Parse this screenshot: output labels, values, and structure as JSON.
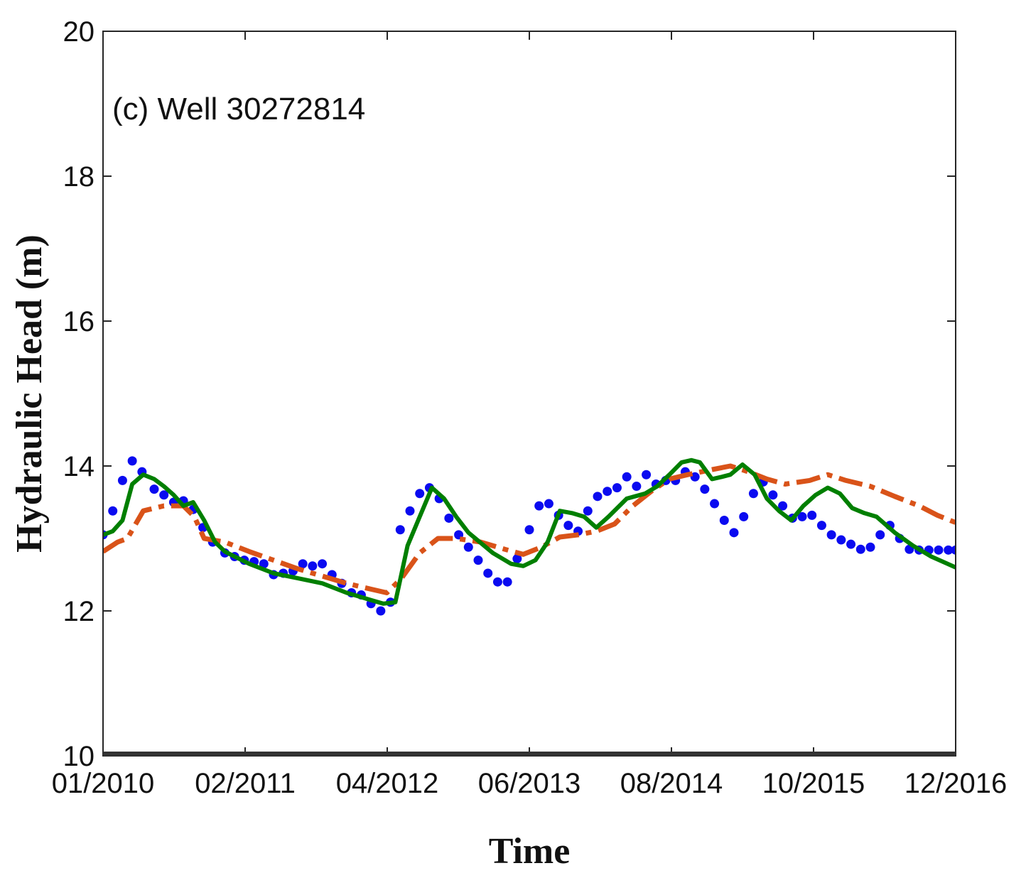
{
  "chart_data": {
    "type": "line",
    "title": "",
    "annotation": "(c) Well 30272814",
    "xlabel": "Time",
    "ylabel": "Hydraulic Head (m)",
    "xlim": [
      0,
      7.0
    ],
    "ylim": [
      10,
      20
    ],
    "x_ticks": [
      0,
      1.1667,
      2.3333,
      3.5,
      4.6667,
      5.8333,
      7.0
    ],
    "x_tick_labels": [
      "01/2010",
      "02/2011",
      "04/2012",
      "06/2013",
      "08/2014",
      "10/2015",
      "12/2016"
    ],
    "y_ticks": [
      10,
      12,
      14,
      16,
      18,
      20
    ],
    "y_tick_labels": [
      "10",
      "12",
      "14",
      "16",
      "18",
      "20"
    ],
    "grid": false,
    "legend": "none",
    "series": [
      {
        "style": "markers",
        "color": "#0a0af0",
        "x": [
          0.0,
          0.08,
          0.16,
          0.24,
          0.32,
          0.42,
          0.5,
          0.58,
          0.66,
          0.74,
          0.82,
          0.9,
          1.0,
          1.08,
          1.16,
          1.24,
          1.32,
          1.4,
          1.48,
          1.56,
          1.64,
          1.72,
          1.8,
          1.88,
          1.96,
          2.04,
          2.12,
          2.2,
          2.28,
          2.36,
          2.44,
          2.52,
          2.6,
          2.68,
          2.76,
          2.84,
          2.92,
          3.0,
          3.08,
          3.16,
          3.24,
          3.32,
          3.4,
          3.5,
          3.58,
          3.66,
          3.74,
          3.82,
          3.9,
          3.98,
          4.06,
          4.14,
          4.22,
          4.3,
          4.38,
          4.46,
          4.54,
          4.62,
          4.7,
          4.78,
          4.86,
          4.94,
          5.02,
          5.1,
          5.18,
          5.26,
          5.34,
          5.42,
          5.5,
          5.58,
          5.66,
          5.74,
          5.82,
          5.9,
          5.98,
          6.06,
          6.14,
          6.22,
          6.3,
          6.38,
          6.46,
          6.54,
          6.62,
          6.7,
          6.78,
          6.86,
          6.94,
          7.0
        ],
        "y": [
          13.05,
          13.38,
          13.8,
          14.07,
          13.92,
          13.68,
          13.6,
          13.5,
          13.52,
          13.4,
          13.15,
          12.95,
          12.8,
          12.75,
          12.7,
          12.68,
          12.65,
          12.5,
          12.52,
          12.55,
          12.65,
          12.62,
          12.65,
          12.5,
          12.38,
          12.25,
          12.22,
          12.1,
          12.0,
          12.12,
          13.12,
          13.38,
          13.62,
          13.7,
          13.55,
          13.28,
          13.05,
          12.88,
          12.7,
          12.52,
          12.4,
          12.4,
          12.72,
          13.12,
          13.45,
          13.48,
          13.32,
          13.18,
          13.1,
          13.38,
          13.58,
          13.65,
          13.7,
          13.85,
          13.72,
          13.88,
          13.75,
          13.8,
          13.8,
          13.92,
          13.85,
          13.68,
          13.48,
          13.25,
          13.08,
          13.3,
          13.62,
          13.78,
          13.6,
          13.45,
          13.28,
          13.3,
          13.32,
          13.18,
          13.05,
          12.98,
          12.92,
          12.85,
          12.88,
          13.05,
          13.18,
          13.0,
          12.85,
          12.84,
          12.84,
          12.84,
          12.84,
          12.84
        ]
      },
      {
        "style": "dash-dot",
        "color": "#d95319",
        "x": [
          0.0,
          0.12,
          0.2,
          0.33,
          0.5,
          0.66,
          0.75,
          0.83,
          1.0,
          1.2,
          1.4,
          1.6,
          1.8,
          2.0,
          2.2,
          2.33,
          2.45,
          2.6,
          2.75,
          2.9,
          3.1,
          3.3,
          3.45,
          3.6,
          3.75,
          3.9,
          4.05,
          4.2,
          4.35,
          4.5,
          4.65,
          4.8,
          5.0,
          5.15,
          5.3,
          5.45,
          5.6,
          5.8,
          5.95,
          6.1,
          6.3,
          6.5,
          6.7,
          6.85,
          7.0
        ],
        "y": [
          12.82,
          12.95,
          13.0,
          13.38,
          13.45,
          13.45,
          13.3,
          13.0,
          12.95,
          12.82,
          12.7,
          12.58,
          12.48,
          12.38,
          12.3,
          12.25,
          12.45,
          12.8,
          13.0,
          13.0,
          12.95,
          12.85,
          12.78,
          12.88,
          13.02,
          13.05,
          13.1,
          13.2,
          13.45,
          13.65,
          13.82,
          13.88,
          13.95,
          14.0,
          13.92,
          13.82,
          13.75,
          13.8,
          13.88,
          13.8,
          13.72,
          13.58,
          13.45,
          13.32,
          13.22
        ]
      },
      {
        "style": "solid",
        "color": "#007f00",
        "x": [
          0.0,
          0.08,
          0.16,
          0.24,
          0.33,
          0.42,
          0.5,
          0.58,
          0.66,
          0.74,
          0.83,
          0.92,
          1.0,
          1.2,
          1.4,
          1.6,
          1.8,
          2.0,
          2.2,
          2.3,
          2.4,
          2.5,
          2.6,
          2.7,
          2.8,
          2.9,
          3.0,
          3.2,
          3.35,
          3.45,
          3.55,
          3.65,
          3.75,
          3.85,
          3.95,
          4.05,
          4.15,
          4.3,
          4.45,
          4.55,
          4.65,
          4.75,
          4.83,
          4.9,
          5.0,
          5.08,
          5.15,
          5.25,
          5.35,
          5.45,
          5.55,
          5.65,
          5.75,
          5.85,
          5.95,
          6.05,
          6.15,
          6.25,
          6.35,
          6.5,
          6.65,
          6.8,
          7.0
        ],
        "y": [
          13.05,
          13.1,
          13.25,
          13.75,
          13.88,
          13.82,
          13.72,
          13.6,
          13.45,
          13.5,
          13.25,
          12.95,
          12.82,
          12.65,
          12.52,
          12.45,
          12.38,
          12.25,
          12.15,
          12.1,
          12.12,
          12.9,
          13.3,
          13.7,
          13.55,
          13.3,
          13.08,
          12.8,
          12.65,
          12.62,
          12.7,
          12.95,
          13.38,
          13.35,
          13.3,
          13.15,
          13.3,
          13.55,
          13.62,
          13.72,
          13.88,
          14.05,
          14.08,
          14.05,
          13.82,
          13.85,
          13.88,
          14.02,
          13.88,
          13.55,
          13.38,
          13.25,
          13.45,
          13.6,
          13.7,
          13.62,
          13.42,
          13.35,
          13.3,
          13.08,
          12.9,
          12.75,
          12.6
        ]
      }
    ]
  }
}
